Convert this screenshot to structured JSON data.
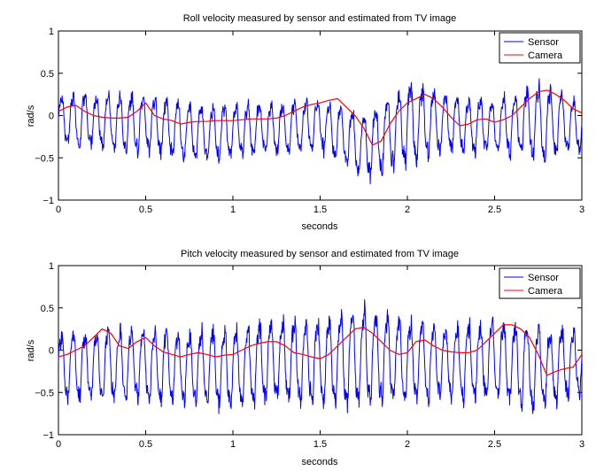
{
  "chart_data": [
    {
      "type": "line",
      "title": "Roll velocity measured by sensor and estimated from TV image",
      "xlabel": "seconds",
      "ylabel": "rad/s",
      "xlim": [
        0,
        3
      ],
      "ylim": [
        -1,
        1
      ],
      "xticks": [
        0,
        0.5,
        1,
        1.5,
        2,
        2.5,
        3
      ],
      "xtick_labels": [
        "0",
        "0.5",
        "1",
        "1.5",
        "2",
        "2.5",
        "3"
      ],
      "yticks": [
        -1,
        -0.5,
        0,
        0.5,
        1
      ],
      "ytick_labels": [
        "−1",
        "−0.5",
        "0",
        "0.5",
        "1"
      ],
      "grid": false,
      "legend_position": "top-right",
      "series": [
        {
          "name": "Sensor",
          "color": "#0000ff",
          "oscillation_hz": 15,
          "envelope_t": [
            0,
            0.25,
            0.5,
            0.75,
            1.0,
            1.25,
            1.5,
            1.75,
            2.0,
            2.25,
            2.5,
            2.75,
            3.0
          ],
          "envelope_max": [
            0.4,
            0.42,
            0.4,
            0.3,
            0.28,
            0.3,
            0.35,
            0.2,
            0.62,
            0.4,
            0.35,
            0.6,
            0.3
          ],
          "envelope_min": [
            -0.5,
            -0.55,
            -0.6,
            -0.7,
            -0.65,
            -0.6,
            -0.55,
            -0.95,
            -0.8,
            -0.6,
            -0.6,
            -0.75,
            -0.55
          ]
        },
        {
          "name": "Camera",
          "color": "#ff0000",
          "x": [
            0,
            0.05,
            0.1,
            0.15,
            0.2,
            0.25,
            0.3,
            0.35,
            0.4,
            0.45,
            0.5,
            0.55,
            0.6,
            0.65,
            0.7,
            0.75,
            0.8,
            0.85,
            0.9,
            0.95,
            1.0,
            1.05,
            1.1,
            1.15,
            1.2,
            1.25,
            1.3,
            1.35,
            1.4,
            1.45,
            1.5,
            1.55,
            1.6,
            1.65,
            1.7,
            1.75,
            1.8,
            1.85,
            1.9,
            1.95,
            2.0,
            2.05,
            2.1,
            2.15,
            2.2,
            2.25,
            2.3,
            2.35,
            2.4,
            2.45,
            2.5,
            2.55,
            2.6,
            2.65,
            2.7,
            2.75,
            2.8,
            2.85,
            2.9,
            2.95,
            3.0
          ],
          "y": [
            0.05,
            0.1,
            0.12,
            0.05,
            0.0,
            -0.02,
            -0.03,
            -0.03,
            -0.02,
            0.05,
            0.15,
            0.0,
            -0.04,
            -0.06,
            -0.1,
            -0.08,
            -0.07,
            -0.07,
            -0.06,
            -0.06,
            -0.06,
            -0.05,
            -0.04,
            -0.04,
            -0.04,
            -0.03,
            0.0,
            0.05,
            0.1,
            0.13,
            0.15,
            0.18,
            0.2,
            0.1,
            0.0,
            -0.15,
            -0.35,
            -0.3,
            -0.1,
            0.05,
            0.15,
            0.2,
            0.25,
            0.2,
            0.1,
            -0.02,
            -0.12,
            -0.1,
            -0.05,
            -0.04,
            -0.08,
            -0.05,
            0.0,
            0.1,
            0.2,
            0.28,
            0.3,
            0.25,
            0.18,
            0.08,
            0.03
          ]
        }
      ]
    },
    {
      "type": "line",
      "title": "Pitch velocity measured by sensor and estimated from TV image",
      "xlabel": "seconds",
      "ylabel": "rad/s",
      "xlim": [
        0,
        3
      ],
      "ylim": [
        -1,
        1
      ],
      "xticks": [
        0,
        0.5,
        1,
        1.5,
        2,
        2.5,
        3
      ],
      "xtick_labels": [
        "0",
        "0.5",
        "1",
        "1.5",
        "2",
        "2.5",
        "3"
      ],
      "yticks": [
        -1,
        -0.5,
        0,
        0.5,
        1
      ],
      "ytick_labels": [
        "−1",
        "−0.5",
        "0",
        "0.5",
        "1"
      ],
      "grid": false,
      "legend_position": "top-right",
      "series": [
        {
          "name": "Sensor",
          "color": "#0000ff",
          "oscillation_hz": 15,
          "envelope_t": [
            0,
            0.25,
            0.5,
            0.75,
            1.0,
            1.25,
            1.5,
            1.75,
            2.0,
            2.25,
            2.5,
            2.75,
            3.0
          ],
          "envelope_max": [
            0.4,
            0.5,
            0.45,
            0.45,
            0.5,
            0.6,
            0.6,
            0.78,
            0.6,
            0.5,
            0.6,
            0.5,
            0.45
          ],
          "envelope_min": [
            -0.8,
            -0.85,
            -0.8,
            -0.85,
            -0.95,
            -0.85,
            -0.9,
            -0.95,
            -0.85,
            -0.8,
            -0.85,
            -0.95,
            -0.7
          ]
        },
        {
          "name": "Camera",
          "color": "#ff0000",
          "x": [
            0,
            0.05,
            0.1,
            0.15,
            0.2,
            0.25,
            0.3,
            0.35,
            0.4,
            0.45,
            0.5,
            0.55,
            0.6,
            0.65,
            0.7,
            0.75,
            0.8,
            0.85,
            0.9,
            0.95,
            1.0,
            1.05,
            1.1,
            1.15,
            1.2,
            1.25,
            1.3,
            1.35,
            1.4,
            1.45,
            1.5,
            1.55,
            1.6,
            1.65,
            1.7,
            1.75,
            1.8,
            1.85,
            1.9,
            1.95,
            2.0,
            2.05,
            2.1,
            2.15,
            2.2,
            2.25,
            2.3,
            2.35,
            2.4,
            2.45,
            2.5,
            2.55,
            2.6,
            2.65,
            2.7,
            2.75,
            2.8,
            2.85,
            2.9,
            2.95,
            3.0
          ],
          "y": [
            -0.08,
            -0.05,
            0.0,
            0.05,
            0.15,
            0.25,
            0.2,
            0.05,
            0.02,
            0.1,
            0.15,
            0.05,
            -0.02,
            -0.05,
            -0.08,
            -0.05,
            -0.03,
            -0.05,
            -0.08,
            -0.06,
            -0.05,
            0.0,
            0.05,
            0.08,
            0.1,
            0.1,
            0.05,
            -0.03,
            -0.05,
            -0.08,
            -0.1,
            -0.05,
            0.05,
            0.15,
            0.25,
            0.27,
            0.2,
            0.1,
            0.0,
            -0.05,
            -0.03,
            0.1,
            0.12,
            0.05,
            0.0,
            -0.02,
            -0.03,
            -0.03,
            0.0,
            0.1,
            0.2,
            0.3,
            0.3,
            0.25,
            0.15,
            -0.05,
            -0.3,
            -0.25,
            -0.22,
            -0.2,
            -0.05
          ]
        }
      ]
    }
  ]
}
